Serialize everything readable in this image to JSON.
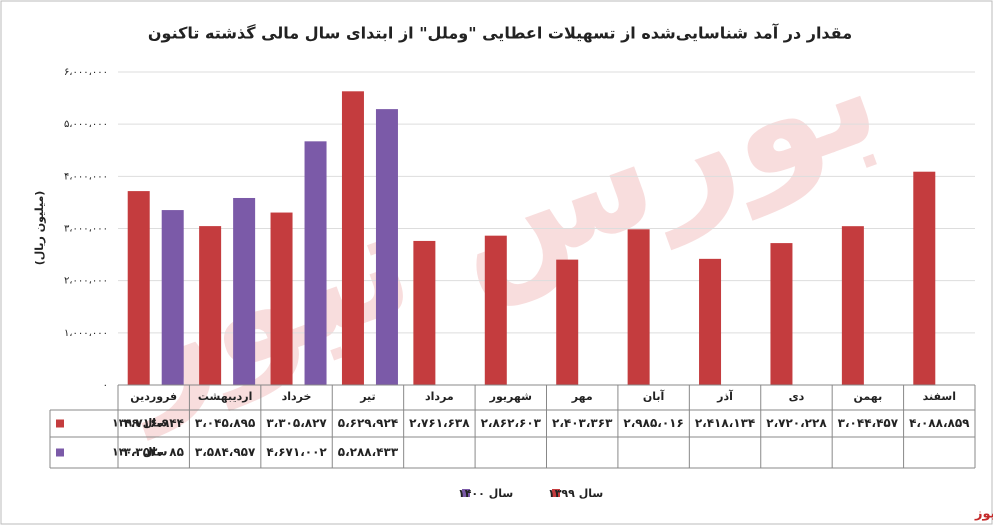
{
  "chart_data": {
    "type": "bar",
    "title": "مقدار در آمد شناسایی‌شده از تسهیلات اعطایی \"وملل\" از ابتدای سال مالی گذشته تاکنون",
    "y_label": "(میلیون ریال)",
    "watermark": "بورس نیوز",
    "source": "بورس نیوز",
    "categories": [
      "فروردین",
      "اردیبهشت",
      "خرداد",
      "تیر",
      "مرداد",
      "شهریور",
      "مهر",
      "آبان",
      "آذر",
      "دی",
      "بهمن",
      "اسفند"
    ],
    "series": [
      {
        "name": "سال ۱۳۹۹",
        "color": "#c43c3e",
        "values": [
          3716944,
          3045895,
          3305827,
          5629924,
          2761638,
          2862603,
          2403363,
          2985016,
          2418134,
          2720228,
          3044457,
          4088859
        ],
        "value_labels": [
          "۳،۷۱۶،۹۴۴",
          "۳،۰۴۵،۸۹۵",
          "۳،۳۰۵،۸۲۷",
          "۵،۶۲۹،۹۲۴",
          "۲،۷۶۱،۶۳۸",
          "۲،۸۶۲،۶۰۳",
          "۲،۴۰۳،۳۶۳",
          "۲،۹۸۵،۰۱۶",
          "۲،۴۱۸،۱۳۴",
          "۲،۷۲۰،۲۲۸",
          "۳،۰۴۴،۴۵۷",
          "۴،۰۸۸،۸۵۹"
        ]
      },
      {
        "name": "سال ۱۴۰۰",
        "color": "#7b5aa8",
        "values": [
          3353085,
          3584957,
          4671002,
          5288433,
          null,
          null,
          null,
          null,
          null,
          null,
          null,
          null
        ],
        "value_labels": [
          "۳،۳۵۳،۰۸۵",
          "۳،۵۸۴،۹۵۷",
          "۴،۶۷۱،۰۰۲",
          "۵،۲۸۸،۴۳۳",
          null,
          null,
          null,
          null,
          null,
          null,
          null,
          null
        ]
      }
    ],
    "ylim": [
      0,
      6000000
    ],
    "yticks": [
      {
        "value": 0,
        "label": "۰"
      },
      {
        "value": 1000000,
        "label": "۱،۰۰۰،۰۰۰"
      },
      {
        "value": 2000000,
        "label": "۲،۰۰۰،۰۰۰"
      },
      {
        "value": 3000000,
        "label": "۳،۰۰۰،۰۰۰"
      },
      {
        "value": 4000000,
        "label": "۴،۰۰۰،۰۰۰"
      },
      {
        "value": 5000000,
        "label": "۵،۰۰۰،۰۰۰"
      },
      {
        "value": 6000000,
        "label": "۶،۰۰۰،۰۰۰"
      }
    ],
    "grid": true
  }
}
